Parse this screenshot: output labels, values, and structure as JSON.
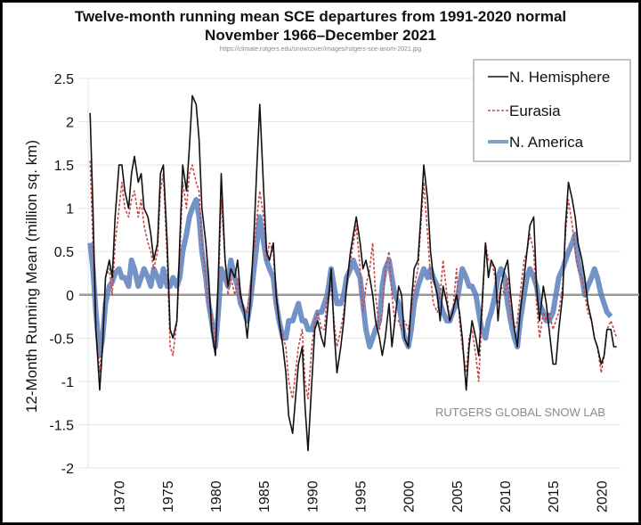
{
  "chart_data": {
    "type": "line",
    "title": "Twelve-month running mean SCE departures from 1991-2020 normal",
    "subtitle": "November 1966–December 2021",
    "source_url": "https://climate.rutgers.edu/snowcover/images/rutgers-sce-anom-2021.jpg",
    "xlabel": "",
    "ylabel": "12-Month Running Mean (million sq. km)",
    "watermark": "RUTGERS GLOBAL SNOW LAB",
    "xlim": [
      1966.8,
      2022.0
    ],
    "ylim": [
      -2,
      2.5
    ],
    "x_ticks": [
      "1970",
      "1975",
      "1980",
      "1985",
      "1990",
      "1995",
      "2000",
      "2005",
      "2010",
      "2015",
      "2020"
    ],
    "y_ticks": [
      "2.5",
      "2",
      "1.5",
      "1",
      "0.5",
      "0",
      "-0.5",
      "-1",
      "-1.5",
      "-2"
    ],
    "grid": true,
    "legend_position": "top-right",
    "x": [
      1967.0,
      1967.3,
      1967.6,
      1968.0,
      1968.3,
      1968.6,
      1969.0,
      1969.3,
      1969.6,
      1970.0,
      1970.3,
      1970.6,
      1971.0,
      1971.3,
      1971.6,
      1972.0,
      1972.3,
      1972.6,
      1973.0,
      1973.3,
      1973.6,
      1974.0,
      1974.3,
      1974.6,
      1975.0,
      1975.3,
      1975.6,
      1976.0,
      1976.3,
      1976.6,
      1977.0,
      1977.3,
      1977.6,
      1978.0,
      1978.3,
      1978.6,
      1979.0,
      1979.3,
      1979.6,
      1980.0,
      1980.3,
      1980.6,
      1981.0,
      1981.3,
      1981.6,
      1982.0,
      1982.3,
      1982.6,
      1983.0,
      1983.3,
      1983.6,
      1984.0,
      1984.3,
      1984.6,
      1985.0,
      1985.3,
      1985.6,
      1986.0,
      1986.3,
      1986.6,
      1987.0,
      1987.3,
      1987.6,
      1988.0,
      1988.3,
      1988.6,
      1989.0,
      1989.3,
      1989.6,
      1990.0,
      1990.3,
      1990.6,
      1991.0,
      1991.3,
      1991.6,
      1992.0,
      1992.3,
      1992.6,
      1993.0,
      1993.3,
      1993.6,
      1994.0,
      1994.3,
      1994.6,
      1995.0,
      1995.3,
      1995.6,
      1996.0,
      1996.3,
      1996.6,
      1997.0,
      1997.3,
      1997.6,
      1998.0,
      1998.3,
      1998.6,
      1999.0,
      1999.3,
      1999.6,
      2000.0,
      2000.3,
      2000.6,
      2001.0,
      2001.3,
      2001.6,
      2002.0,
      2002.3,
      2002.6,
      2003.0,
      2003.3,
      2003.6,
      2004.0,
      2004.3,
      2004.6,
      2005.0,
      2005.3,
      2005.6,
      2006.0,
      2006.3,
      2006.6,
      2007.0,
      2007.3,
      2007.6,
      2008.0,
      2008.3,
      2008.6,
      2009.0,
      2009.3,
      2009.6,
      2010.0,
      2010.3,
      2010.6,
      2011.0,
      2011.3,
      2011.6,
      2012.0,
      2012.3,
      2012.6,
      2013.0,
      2013.3,
      2013.6,
      2014.0,
      2014.3,
      2014.6,
      2015.0,
      2015.3,
      2015.6,
      2016.0,
      2016.3,
      2016.6,
      2017.0,
      2017.3,
      2017.6,
      2018.0,
      2018.3,
      2018.6,
      2019.0,
      2019.3,
      2019.6,
      2020.0,
      2020.3,
      2020.6,
      2021.0,
      2021.3,
      2021.6,
      2021.9
    ],
    "series": [
      {
        "name": "N. Hemisphere",
        "color": "#111111",
        "style": "solid",
        "values": [
          2.1,
          1.0,
          -0.4,
          -1.1,
          -0.6,
          0.2,
          0.4,
          0.2,
          0.9,
          1.5,
          1.5,
          1.2,
          1.0,
          1.4,
          1.6,
          1.3,
          1.4,
          1.0,
          0.9,
          0.7,
          0.4,
          0.6,
          1.4,
          1.5,
          0.6,
          -0.4,
          -0.5,
          -0.3,
          0.6,
          1.5,
          1.2,
          1.7,
          2.3,
          2.2,
          1.8,
          1.0,
          0.6,
          0.2,
          -0.4,
          -0.7,
          0.2,
          1.4,
          0.4,
          0.1,
          0.3,
          0.2,
          0.4,
          0.0,
          -0.2,
          -0.5,
          -0.1,
          0.7,
          1.5,
          2.2,
          1.2,
          0.5,
          0.4,
          0.6,
          0.0,
          -0.3,
          -0.6,
          -0.9,
          -1.4,
          -1.6,
          -1.2,
          -0.8,
          -0.6,
          -1.3,
          -1.8,
          -1.0,
          -0.4,
          -0.3,
          -0.5,
          -0.6,
          -0.2,
          0.3,
          -0.4,
          -0.9,
          -0.6,
          -0.3,
          0.1,
          0.5,
          0.7,
          0.9,
          0.6,
          0.3,
          0.4,
          0.2,
          0.0,
          -0.3,
          -0.5,
          -0.7,
          -0.5,
          -0.1,
          -0.6,
          -0.3,
          0.1,
          0.0,
          -0.5,
          -0.6,
          -0.1,
          0.3,
          0.4,
          0.9,
          1.5,
          1.1,
          0.5,
          0.2,
          0.0,
          -0.3,
          0.1,
          -0.1,
          -0.3,
          -0.2,
          0.0,
          -0.2,
          -0.5,
          -1.1,
          -0.6,
          -0.3,
          -0.5,
          -0.7,
          -0.2,
          0.6,
          0.2,
          0.4,
          0.3,
          -0.3,
          0.1,
          0.3,
          0.4,
          0.0,
          -0.4,
          -0.6,
          -0.2,
          0.2,
          0.5,
          0.8,
          0.9,
          0.1,
          -0.3,
          0.1,
          -0.1,
          -0.4,
          -0.8,
          -0.8,
          -0.4,
          0.0,
          0.8,
          1.3,
          1.1,
          0.9,
          0.6,
          0.4,
          0.2,
          -0.1,
          -0.3,
          -0.5,
          -0.6,
          -0.8,
          -0.7,
          -0.4,
          -0.4,
          -0.6,
          -0.6
        ]
      },
      {
        "name": "Eurasia",
        "color": "#c84a4a",
        "style": "dashed",
        "values": [
          1.55,
          0.6,
          -0.4,
          -0.9,
          -0.5,
          0.2,
          0.3,
          0.0,
          0.6,
          1.0,
          1.3,
          1.0,
          0.9,
          1.1,
          1.2,
          0.9,
          1.1,
          0.8,
          0.6,
          0.5,
          0.3,
          0.5,
          1.2,
          1.4,
          0.4,
          -0.6,
          -0.7,
          -0.3,
          0.4,
          1.3,
          1.0,
          1.4,
          1.5,
          1.3,
          1.2,
          0.6,
          0.2,
          -0.1,
          -0.2,
          -0.6,
          0.0,
          1.1,
          0.4,
          0.0,
          0.2,
          0.0,
          0.2,
          -0.1,
          -0.2,
          -0.2,
          0.1,
          0.5,
          0.9,
          1.2,
          0.9,
          0.4,
          0.6,
          0.5,
          -0.1,
          -0.3,
          -0.5,
          -0.6,
          -1.0,
          -1.2,
          -0.9,
          -0.6,
          -0.4,
          -1.0,
          -1.2,
          -0.6,
          -0.3,
          -0.2,
          -0.4,
          -0.4,
          0.0,
          0.1,
          -0.3,
          -0.6,
          -0.4,
          -0.2,
          0.1,
          0.4,
          0.6,
          0.8,
          0.3,
          -0.2,
          0.1,
          0.3,
          0.6,
          0.0,
          -0.4,
          -0.2,
          0.3,
          0.5,
          0.0,
          -0.3,
          -0.3,
          -0.4,
          -0.3,
          -0.4,
          -0.2,
          0.1,
          0.3,
          0.8,
          1.3,
          0.7,
          0.2,
          -0.1,
          -0.2,
          0.0,
          0.4,
          0.0,
          -0.3,
          -0.2,
          0.3,
          -0.3,
          -0.6,
          -0.9,
          -0.5,
          -0.4,
          -0.7,
          -1.0,
          -0.3,
          0.6,
          0.4,
          0.4,
          0.2,
          -0.1,
          0.1,
          0.0,
          0.2,
          -0.2,
          -0.4,
          -0.3,
          0.0,
          0.4,
          0.5,
          0.7,
          0.5,
          -0.1,
          -0.5,
          -0.2,
          -0.3,
          -0.2,
          -0.4,
          -0.3,
          -0.2,
          0.1,
          0.7,
          1.1,
          0.8,
          0.5,
          0.3,
          0.2,
          0.0,
          -0.2,
          -0.3,
          -0.5,
          -0.6,
          -0.9,
          -0.7,
          -0.4,
          -0.3,
          -0.4,
          -0.5
        ]
      },
      {
        "name": "N. America",
        "color": "#5b7fbe",
        "style": "thick",
        "values": [
          0.6,
          0.3,
          -0.2,
          -0.7,
          -0.5,
          -0.1,
          0.1,
          0.15,
          0.25,
          0.3,
          0.2,
          0.2,
          0.1,
          0.4,
          0.3,
          0.1,
          0.2,
          0.3,
          0.2,
          0.1,
          0.3,
          0.2,
          0.1,
          0.3,
          0.1,
          0.1,
          0.2,
          0.1,
          0.2,
          0.5,
          0.7,
          0.9,
          1.0,
          1.1,
          0.9,
          0.5,
          0.2,
          -0.1,
          -0.3,
          -0.6,
          -0.2,
          0.3,
          0.2,
          0.1,
          0.4,
          0.2,
          0.1,
          -0.1,
          -0.2,
          -0.3,
          -0.1,
          0.3,
          0.6,
          0.9,
          0.6,
          0.4,
          0.3,
          0.2,
          -0.1,
          -0.3,
          -0.5,
          -0.5,
          -0.3,
          -0.3,
          -0.2,
          -0.1,
          -0.3,
          -0.3,
          -0.4,
          -0.4,
          -0.3,
          -0.2,
          -0.2,
          -0.1,
          0.0,
          0.3,
          0.1,
          -0.1,
          -0.1,
          0.0,
          0.2,
          0.3,
          0.4,
          0.3,
          0.2,
          -0.1,
          -0.4,
          -0.6,
          -0.5,
          -0.4,
          -0.3,
          0.1,
          0.3,
          0.4,
          0.2,
          0.0,
          -0.1,
          -0.3,
          -0.5,
          -0.6,
          -0.4,
          -0.1,
          0.1,
          0.2,
          0.3,
          0.2,
          0.3,
          0.2,
          0.1,
          -0.1,
          -0.2,
          -0.3,
          -0.3,
          -0.2,
          -0.1,
          0.1,
          0.3,
          0.2,
          0.1,
          0.1,
          0.0,
          -0.2,
          -0.4,
          -0.5,
          -0.3,
          -0.2,
          0.0,
          0.2,
          0.3,
          0.2,
          -0.1,
          -0.3,
          -0.5,
          -0.6,
          -0.3,
          0.0,
          0.2,
          0.3,
          0.2,
          0.1,
          -0.1,
          -0.2,
          -0.3,
          -0.3,
          -0.2,
          0.0,
          0.2,
          0.3,
          0.4,
          0.5,
          0.6,
          0.7,
          0.4,
          0.2,
          0.0,
          0.1,
          0.2,
          0.3,
          0.2,
          0.0,
          -0.1,
          -0.2,
          -0.25
        ]
      }
    ]
  }
}
